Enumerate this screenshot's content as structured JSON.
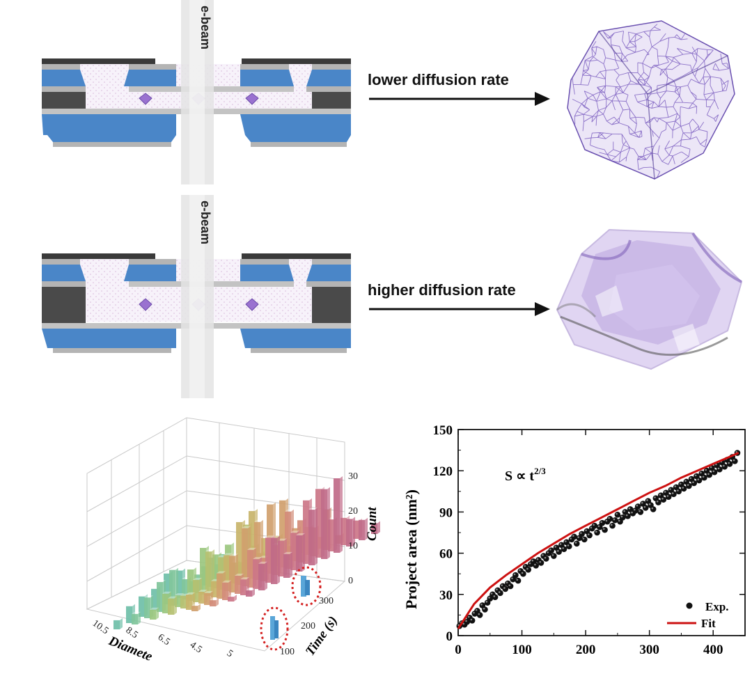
{
  "panels": {
    "top": {
      "beam_label": "e-beam",
      "arrow_label": "lower diffusion rate"
    },
    "middle": {
      "beam_label": "e-beam",
      "arrow_label": "higher diffusion rate"
    }
  },
  "colors": {
    "membrane_blue": "#4a86c8",
    "dark_layer": "#4a4a4a",
    "gray_layer": "#b4b4b4",
    "particle_purple": "#9a72d0",
    "fit_red": "#cc1111",
    "wire_purple": "#7a5cc0"
  },
  "histogram3d": {
    "axis_count_label": "Count",
    "axis_time_label": "Time (s)",
    "axis_diameter_label": "Diamete",
    "count_ticks": [
      "30",
      "20",
      "10",
      "0"
    ],
    "time_ticks": [
      "300",
      "200",
      "100"
    ],
    "diameter_ticks": [
      "10.5",
      "8.5",
      "6.5",
      "4.5",
      "5"
    ]
  },
  "chart_data": {
    "type": "scatter",
    "title": "",
    "xlabel": "",
    "ylabel": "Project area (nm²)",
    "annotation": "S ∝ t^(2/3)",
    "xlim": [
      0,
      450
    ],
    "ylim": [
      0,
      150
    ],
    "xticks": [
      "0",
      "100",
      "200",
      "300",
      "400"
    ],
    "yticks": [
      "0",
      "30",
      "60",
      "90",
      "120",
      "150"
    ],
    "grid": false,
    "legend": "bottom-right",
    "series": [
      {
        "name": "Exp.",
        "kind": "scatter",
        "color": "#111111",
        "x": [
          2,
          6,
          10,
          14,
          18,
          22,
          26,
          30,
          34,
          38,
          42,
          46,
          50,
          54,
          58,
          62,
          66,
          70,
          74,
          78,
          82,
          86,
          90,
          94,
          98,
          102,
          106,
          110,
          114,
          118,
          122,
          126,
          130,
          134,
          138,
          142,
          146,
          150,
          154,
          158,
          162,
          166,
          170,
          174,
          178,
          182,
          186,
          190,
          194,
          198,
          202,
          206,
          210,
          214,
          218,
          222,
          226,
          230,
          234,
          238,
          242,
          246,
          250,
          254,
          258,
          262,
          266,
          270,
          274,
          278,
          282,
          286,
          290,
          294,
          298,
          302,
          306,
          310,
          314,
          318,
          322,
          326,
          330,
          334,
          338,
          342,
          346,
          350,
          354,
          358,
          362,
          366,
          370,
          374,
          378,
          382,
          386,
          390,
          394,
          398,
          402,
          406,
          410,
          414,
          418,
          422,
          426,
          430,
          434,
          438
        ],
        "y": [
          7,
          9,
          8,
          10,
          13,
          11,
          16,
          18,
          15,
          22,
          19,
          24,
          27,
          30,
          28,
          33,
          31,
          36,
          34,
          38,
          36,
          41,
          44,
          40,
          47,
          45,
          50,
          48,
          52,
          54,
          51,
          55,
          53,
          58,
          56,
          60,
          62,
          58,
          64,
          61,
          66,
          63,
          68,
          65,
          70,
          72,
          67,
          71,
          74,
          70,
          76,
          73,
          78,
          80,
          75,
          79,
          82,
          77,
          83,
          85,
          80,
          84,
          88,
          83,
          86,
          90,
          87,
          92,
          89,
          91,
          94,
          90,
          96,
          93,
          98,
          95,
          92,
          100,
          97,
          102,
          99,
          104,
          101,
          106,
          103,
          108,
          105,
          110,
          107,
          112,
          109,
          114,
          111,
          116,
          113,
          118,
          115,
          120,
          117,
          122,
          119,
          124,
          121,
          126,
          123,
          128,
          125,
          130,
          127,
          133
        ]
      },
      {
        "name": "Fit",
        "kind": "line",
        "color": "#cc1111",
        "model": "S = 4.9 + 2.2 * t^(2/3)",
        "x": [
          0,
          25,
          50,
          75,
          100,
          125,
          150,
          175,
          200,
          225,
          250,
          275,
          300,
          325,
          350,
          375,
          400,
          425,
          440
        ],
        "y": [
          5,
          23,
          35,
          44,
          52,
          60,
          67,
          74,
          80,
          86,
          92,
          98,
          104,
          109,
          115,
          120,
          125,
          130,
          133
        ]
      }
    ]
  }
}
